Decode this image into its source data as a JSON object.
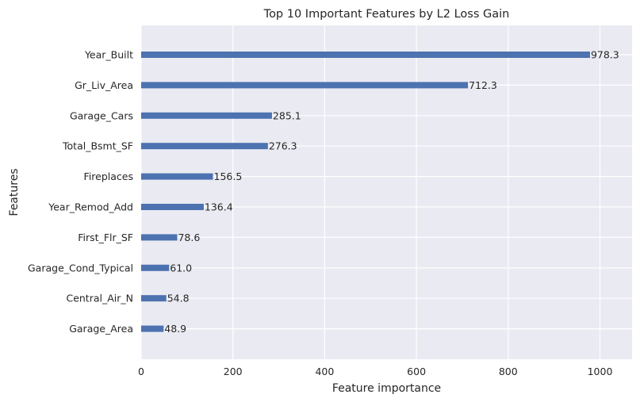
{
  "chart_data": {
    "type": "bar",
    "orientation": "horizontal",
    "title": "Top 10 Important Features by L2 Loss Gain",
    "xlabel": "Feature importance",
    "ylabel": "Features",
    "xlim": [
      0,
      1070
    ],
    "x_ticks": [
      0,
      200,
      400,
      600,
      800,
      1000
    ],
    "x_tick_labels": [
      "0",
      "200",
      "400",
      "600",
      "800",
      "1000"
    ],
    "grid": true,
    "background_color": "#EAEAF2",
    "bar_color": "#4C72B0",
    "categories": [
      "Year_Built",
      "Gr_Liv_Area",
      "Garage_Cars",
      "Total_Bsmt_SF",
      "Fireplaces",
      "Year_Remod_Add",
      "First_Flr_SF",
      "Garage_Cond_Typical",
      "Central_Air_N",
      "Garage_Area"
    ],
    "values": [
      978.3,
      712.3,
      285.1,
      276.3,
      156.5,
      136.4,
      78.6,
      61.0,
      54.8,
      48.9
    ],
    "value_labels": [
      "978.3",
      "712.3",
      "285.1",
      "276.3",
      "156.5",
      "136.4",
      "78.6",
      "61.0",
      "54.8",
      "48.9"
    ]
  }
}
